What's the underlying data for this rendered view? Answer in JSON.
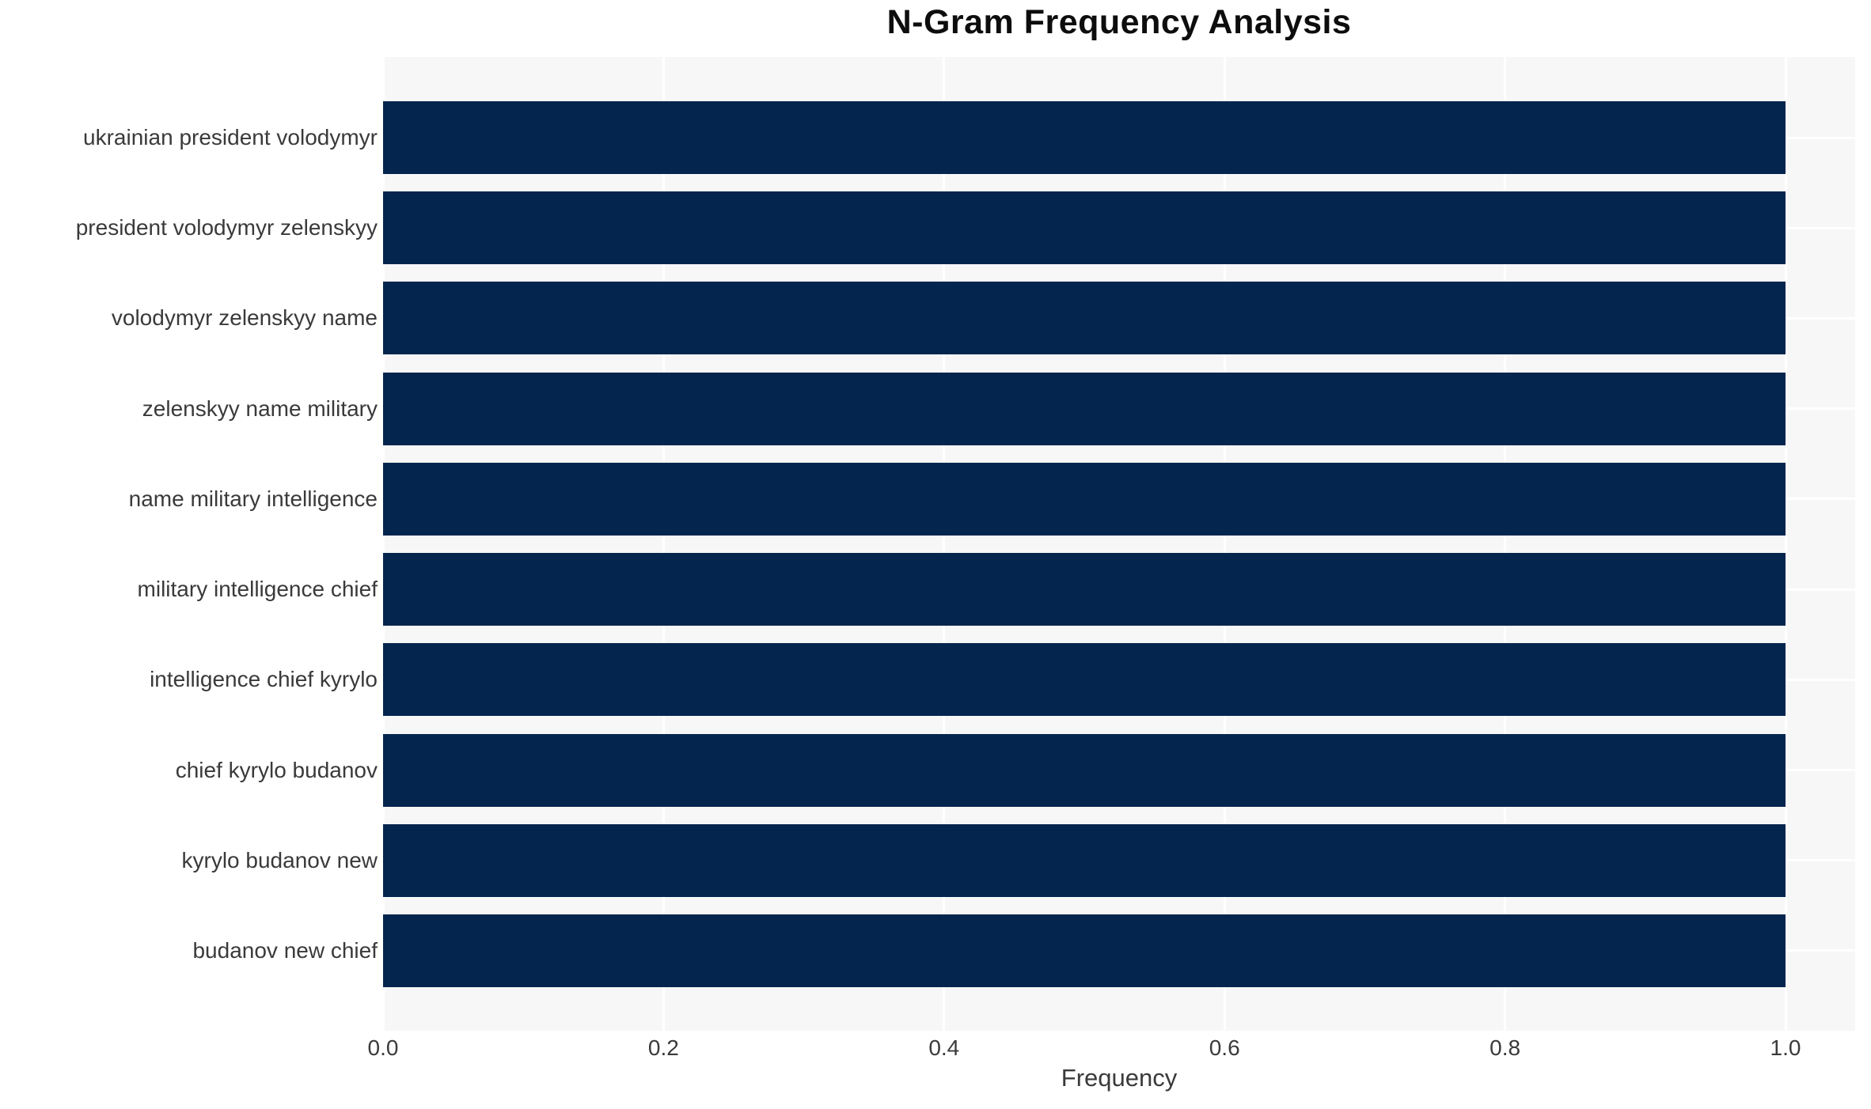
{
  "chart_data": {
    "type": "bar",
    "orientation": "horizontal",
    "title": "N-Gram Frequency Analysis",
    "xlabel": "Frequency",
    "ylabel": "",
    "categories": [
      "ukrainian president volodymyr",
      "president volodymyr zelenskyy",
      "volodymyr zelenskyy name",
      "zelenskyy name military",
      "name military intelligence",
      "military intelligence chief",
      "intelligence chief kyrylo",
      "chief kyrylo budanov",
      "kyrylo budanov new",
      "budanov new chief"
    ],
    "values": [
      1.0,
      1.0,
      1.0,
      1.0,
      1.0,
      1.0,
      1.0,
      1.0,
      1.0,
      1.0
    ],
    "x_ticks": [
      "0.0",
      "0.2",
      "0.4",
      "0.6",
      "0.8",
      "1.0"
    ],
    "x_tick_values": [
      0,
      0.2,
      0.4,
      0.6,
      0.8,
      1.0
    ],
    "xlim": [
      0,
      1.05
    ],
    "grid": true,
    "legend": false,
    "colors": {
      "bar": "#03254e",
      "plot_background": "#f7f7f7",
      "grid_line": "#ffffff",
      "title_text": "#0d0d0d",
      "axis_text": "#3a3a3a",
      "page_background": "#ffffff"
    }
  }
}
